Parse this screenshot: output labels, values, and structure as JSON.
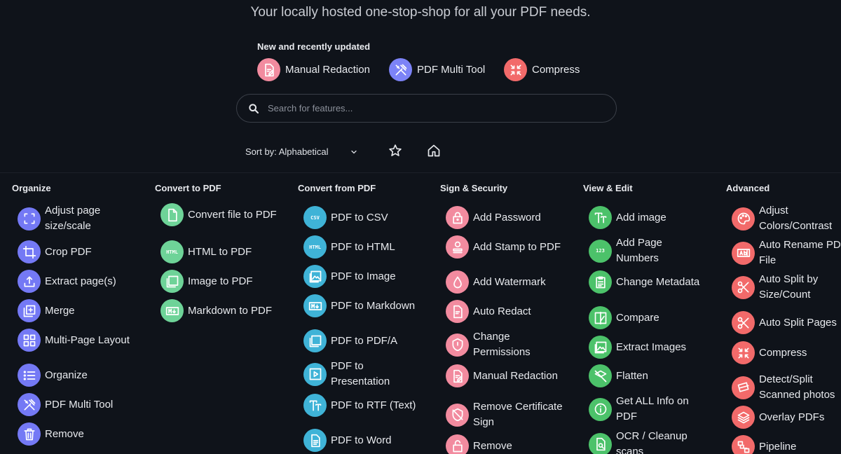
{
  "tagline": "Your locally hosted one-stop-shop for all your PDF needs.",
  "new_section": {
    "title": "New and recently updated",
    "items": [
      {
        "label": "Manual Redaction",
        "icon": "redaction-icon",
        "color": "#f28b9f"
      },
      {
        "label": "PDF Multi Tool",
        "icon": "tools-icon",
        "color": "#7c83f7"
      },
      {
        "label": "Compress",
        "icon": "compress-icon",
        "color": "#f26a6a"
      }
    ]
  },
  "search": {
    "placeholder": "Search for features..."
  },
  "sort": {
    "label": "Sort by: Alphabetical"
  },
  "colors": {
    "organize": "#7479f5",
    "convert_to": "#6ed398",
    "convert_from": "#3fb3d7",
    "security": "#f28b9f",
    "view_edit": "#4cc26a",
    "advanced": "#f26a6a",
    "background": "#0f131a"
  },
  "categories": [
    {
      "title": "Organize",
      "tools": [
        {
          "label": "Adjust page size/scale",
          "icon": "resize-icon"
        },
        {
          "label": "Crop PDF",
          "icon": "crop-icon"
        },
        {
          "label": "Extract page(s)",
          "icon": "upload-icon"
        },
        {
          "label": "Merge",
          "icon": "merge-icon"
        },
        {
          "label": "Multi-Page Layout",
          "icon": "grid-icon"
        },
        {
          "label": "Organize",
          "icon": "list-icon"
        },
        {
          "label": "PDF Multi Tool",
          "icon": "tools-icon"
        },
        {
          "label": "Remove",
          "icon": "trash-icon"
        }
      ]
    },
    {
      "title": "Convert to PDF",
      "tools": [
        {
          "label": "Convert file to PDF",
          "icon": "file-icon"
        },
        {
          "label": "HTML to PDF",
          "icon": "html-icon"
        },
        {
          "label": "Image to PDF",
          "icon": "pdf-icon"
        },
        {
          "label": "Markdown to PDF",
          "icon": "markdown-icon"
        }
      ]
    },
    {
      "title": "Convert from PDF",
      "tools": [
        {
          "label": "PDF to CSV",
          "icon": "csv-icon"
        },
        {
          "label": "PDF to HTML",
          "icon": "html-icon"
        },
        {
          "label": "PDF to Image",
          "icon": "image-icon"
        },
        {
          "label": "PDF to Markdown",
          "icon": "markdown-icon"
        },
        {
          "label": "PDF to PDF/A",
          "icon": "pdfa-icon"
        },
        {
          "label": "PDF to Presentation",
          "icon": "presentation-icon"
        },
        {
          "label": "PDF to RTF (Text)",
          "icon": "text-icon"
        },
        {
          "label": "PDF to Word",
          "icon": "word-icon"
        }
      ]
    },
    {
      "title": "Sign & Security",
      "tools": [
        {
          "label": "Add Password",
          "icon": "lock-icon"
        },
        {
          "label": "Add Stamp to PDF",
          "icon": "stamp-icon"
        },
        {
          "label": "Add Watermark",
          "icon": "water-drop-icon"
        },
        {
          "label": "Auto Redact",
          "icon": "auto-redact-icon"
        },
        {
          "label": "Change Permissions",
          "icon": "shield-icon"
        },
        {
          "label": "Manual Redaction",
          "icon": "redaction-icon"
        },
        {
          "label": "Remove Certificate Sign",
          "icon": "remove-cert-icon"
        },
        {
          "label": "Remove",
          "icon": "unlock-icon"
        }
      ]
    },
    {
      "title": "View & Edit",
      "tools": [
        {
          "label": "Add image",
          "icon": "text-icon"
        },
        {
          "label": "Add Page Numbers",
          "icon": "numbers-icon"
        },
        {
          "label": "Change Metadata",
          "icon": "metadata-icon"
        },
        {
          "label": "Compare",
          "icon": "compare-icon"
        },
        {
          "label": "Extract Images",
          "icon": "image-icon"
        },
        {
          "label": "Flatten",
          "icon": "flatten-icon"
        },
        {
          "label": "Get ALL Info on PDF",
          "icon": "info-icon"
        },
        {
          "label": "OCR / Cleanup scans",
          "icon": "ocr-icon"
        }
      ]
    },
    {
      "title": "Advanced",
      "tools": [
        {
          "label": "Adjust Colors/Contrast",
          "icon": "palette-icon"
        },
        {
          "label": "Auto Rename PDF File",
          "icon": "rename-icon"
        },
        {
          "label": "Auto Split by Size/Count",
          "icon": "scissors-icon"
        },
        {
          "label": "Auto Split Pages",
          "icon": "scissors-icon"
        },
        {
          "label": "Compress",
          "icon": "compress-icon"
        },
        {
          "label": "Detect/Split Scanned photos",
          "icon": "scan-icon"
        },
        {
          "label": "Overlay PDFs",
          "icon": "layers-icon"
        },
        {
          "label": "Pipeline",
          "icon": "pipeline-icon"
        }
      ]
    }
  ]
}
